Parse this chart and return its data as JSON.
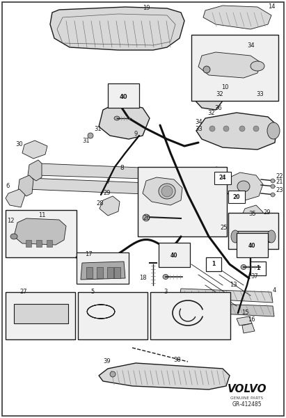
{
  "bg_color": "#ffffff",
  "fig_width": 4.11,
  "fig_height": 6.01,
  "dpi": 100,
  "volvo_text": "VOLVO",
  "volvo_sub": "GENUINE PARTS",
  "part_number": "GR-412485"
}
